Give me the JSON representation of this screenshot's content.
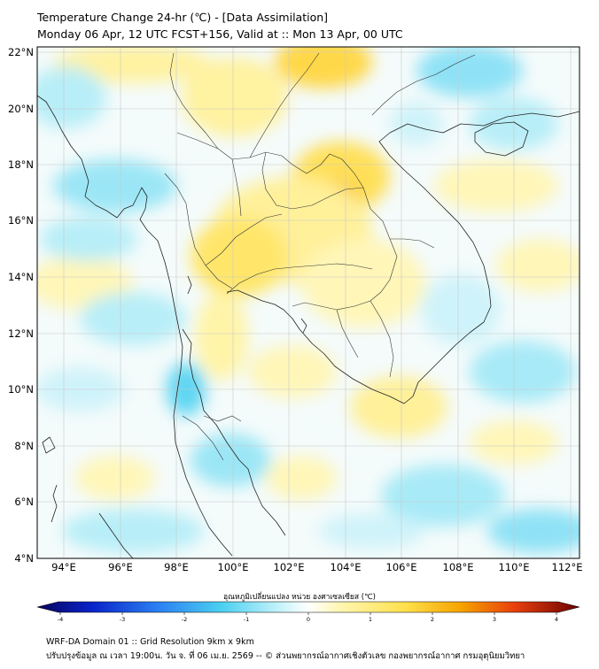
{
  "header": {
    "title_line1": "Temperature Change 24-hr (℃) - [Data Assimilation]",
    "title_line2": "Monday 06 Apr, 12 UTC FCST+156, Valid at :: Mon 13 Apr, 00 UTC"
  },
  "map": {
    "lat_labels": [
      "22°N",
      "20°N",
      "18°N",
      "16°N",
      "14°N",
      "12°N",
      "10°N",
      "8°N",
      "6°N",
      "4°N"
    ],
    "lon_labels": [
      "94°E",
      "96°E",
      "98°E",
      "100°E",
      "102°E",
      "104°E",
      "106°E",
      "108°E",
      "110°E",
      "112°E"
    ],
    "colors": {
      "warm_light": "#fff6b0",
      "warm": "#ffe04a",
      "warm_strong": "#f5b800",
      "cool_light": "#cff5ff",
      "cool": "#7fe3f6",
      "cool_strong": "#3fc6ee",
      "coast": "#222222"
    }
  },
  "colorbar": {
    "label": "อุณหภูมิเปลี่ยนแปลง หน่วย องศาเซลเซียส (℃)",
    "ticks": [
      "-4",
      "-3",
      "-2",
      "-1",
      "0",
      "1",
      "2",
      "3",
      "4"
    ]
  },
  "footer": {
    "line1": "WRF-DA Domain 01 :: Grid Resolution 9km x 9km",
    "line2": "ปรับปรุงข้อมูล ณ เวลา 19:00น. วัน จ. ที่ 06 เม.ย. 2569 -- © ส่วนพยากรณ์อากาศเชิงตัวเลข กองพยากรณ์อากาศ กรมอุตุนิยมวิทยา"
  }
}
